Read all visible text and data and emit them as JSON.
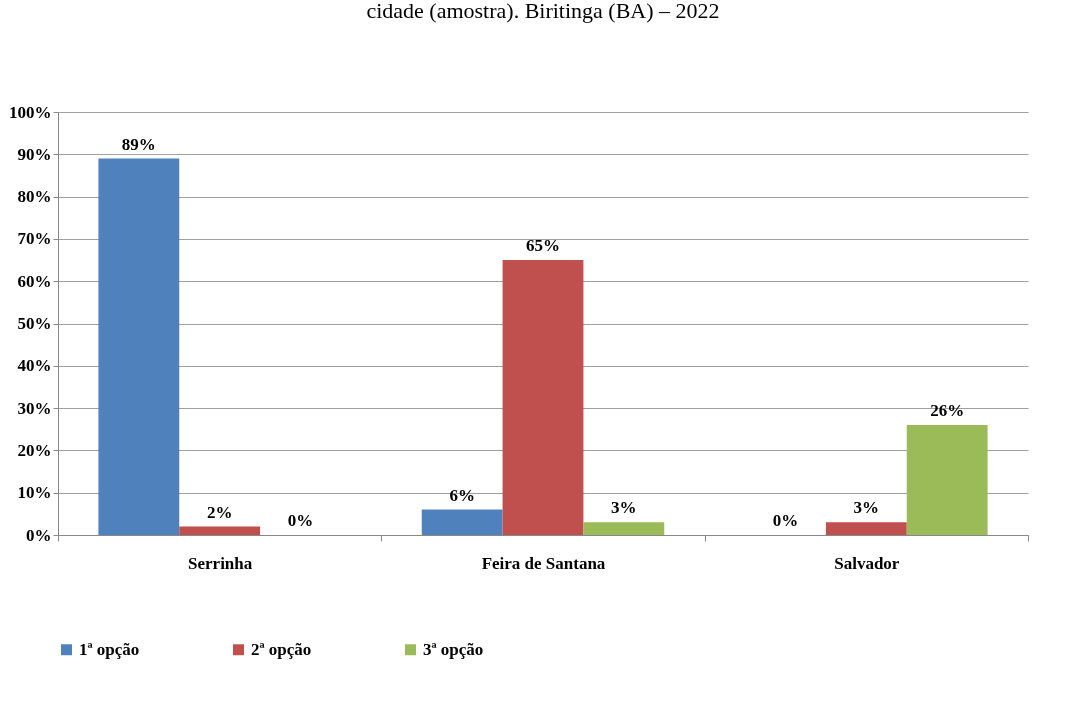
{
  "chart_data": {
    "type": "bar",
    "title": "cidade (amostra). Biritinga (BA) – 2022",
    "categories": [
      "Serrinha",
      "Feira de Santana",
      "Salvador"
    ],
    "series": [
      {
        "name": "1ª opção",
        "color": "#4f81bd",
        "values": [
          89,
          6,
          0
        ]
      },
      {
        "name": "2ª opção",
        "color": "#c0504d",
        "values": [
          2,
          65,
          3
        ]
      },
      {
        "name": "3ª opção",
        "color": "#9bbb59",
        "values": [
          0,
          3,
          26
        ]
      }
    ],
    "ylim": [
      0,
      100
    ],
    "yticks": [
      {
        "value": 0,
        "label": "0%"
      },
      {
        "value": 10,
        "label": "10%"
      },
      {
        "value": 20,
        "label": "20%"
      },
      {
        "value": 30,
        "label": "30%"
      },
      {
        "value": 40,
        "label": "40%"
      },
      {
        "value": 50,
        "label": "50%"
      },
      {
        "value": 60,
        "label": "60%"
      },
      {
        "value": 70,
        "label": "70%"
      },
      {
        "value": 80,
        "label": "80%"
      },
      {
        "value": 90,
        "label": "90%"
      },
      {
        "value": 100,
        "label": "100%"
      }
    ],
    "value_labels": [
      "89%",
      "2%",
      "0%",
      "6%",
      "65%",
      "3%",
      "0%",
      "3%",
      "26%"
    ],
    "grid": "y",
    "legend": "bottom"
  }
}
